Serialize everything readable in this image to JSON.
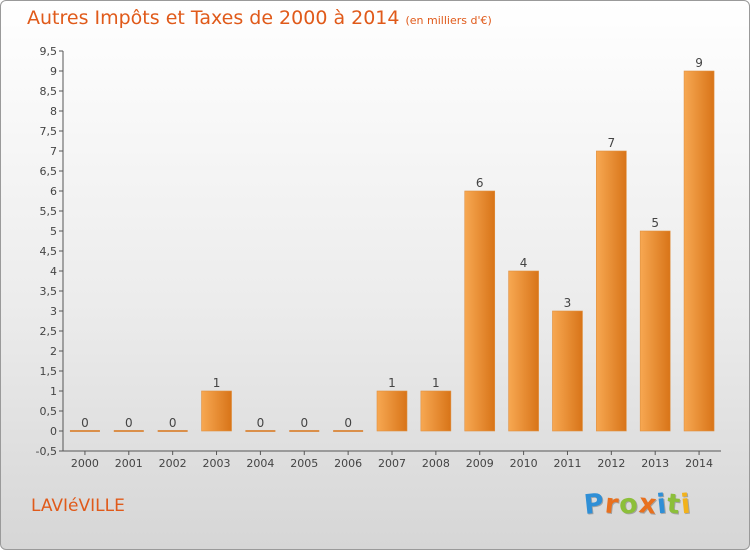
{
  "header": {
    "title": "Autres Impôts et Taxes de 2000 à 2014",
    "subtitle": "(en milliers d'€)"
  },
  "footer": {
    "commune": "LAVIéVILLE",
    "brand": "Proxiti",
    "brand_letters": [
      {
        "ch": "P",
        "color": "#2f8fd6"
      },
      {
        "ch": "r",
        "color": "#e8701e"
      },
      {
        "ch": "o",
        "color": "#8cbf3a"
      },
      {
        "ch": "x",
        "color": "#e8701e"
      },
      {
        "ch": "i",
        "color": "#2f8fd6"
      },
      {
        "ch": "t",
        "color": "#8cbf3a"
      },
      {
        "ch": "i",
        "color": "#f2b21b"
      }
    ]
  },
  "colors": {
    "bar_light": "#f7a852",
    "bar_dark": "#d87418",
    "text": "#444444",
    "accent": "#e05a1a"
  },
  "chart_data": {
    "type": "bar",
    "categories": [
      "2000",
      "2001",
      "2002",
      "2003",
      "2004",
      "2005",
      "2006",
      "2007",
      "2008",
      "2009",
      "2010",
      "2011",
      "2012",
      "2013",
      "2014"
    ],
    "values": [
      0,
      0,
      0,
      1,
      0,
      0,
      0,
      1,
      1,
      6,
      4,
      3,
      7,
      5,
      9
    ],
    "data_labels": [
      "0",
      "0",
      "0",
      "1",
      "0",
      "0",
      "0",
      "1",
      "1",
      "6",
      "4",
      "3",
      "7",
      "5",
      "9"
    ],
    "title": "Autres Impôts et Taxes de 2000 à 2014",
    "subtitle": "(en milliers d'€)",
    "xlabel": "",
    "ylabel": "",
    "ylim": [
      -0.5,
      9.5
    ],
    "yticks": [
      -0.5,
      0,
      0.5,
      1,
      1.5,
      2,
      2.5,
      3,
      3.5,
      4,
      4.5,
      5,
      5.5,
      6,
      6.5,
      7,
      7.5,
      8,
      8.5,
      9,
      9.5
    ],
    "ytick_labels": [
      "-0,5",
      "0",
      "0,5",
      "1",
      "1,5",
      "2",
      "2,5",
      "3",
      "3,5",
      "4",
      "4,5",
      "5",
      "5,5",
      "6",
      "6,5",
      "7",
      "7,5",
      "8",
      "8,5",
      "9",
      "9,5"
    ],
    "grid": false,
    "legend": "none"
  }
}
